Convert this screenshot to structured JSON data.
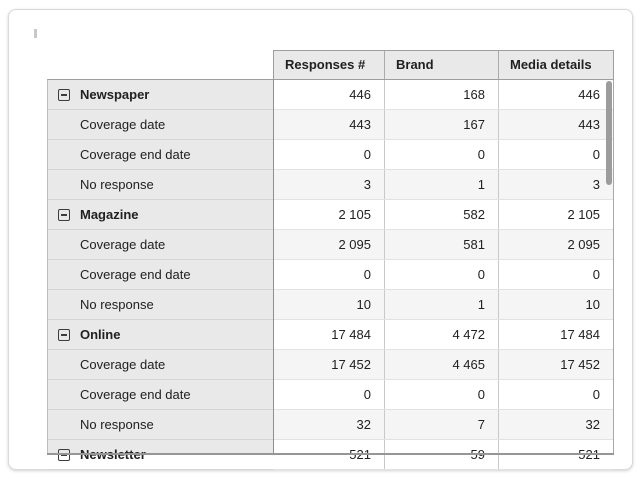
{
  "table": {
    "columns": [
      "Responses #",
      "Brand",
      "Media details"
    ],
    "rows": [
      {
        "label": "Newspaper",
        "group": true,
        "values": [
          "446",
          "168",
          "446"
        ]
      },
      {
        "label": "Coverage date",
        "group": false,
        "values": [
          "443",
          "167",
          "443"
        ]
      },
      {
        "label": "Coverage end date",
        "group": false,
        "values": [
          "0",
          "0",
          "0"
        ]
      },
      {
        "label": "No response",
        "group": false,
        "values": [
          "3",
          "1",
          "3"
        ]
      },
      {
        "label": "Magazine",
        "group": true,
        "values": [
          "2 105",
          "582",
          "2 105"
        ]
      },
      {
        "label": "Coverage date",
        "group": false,
        "values": [
          "2 095",
          "581",
          "2 095"
        ]
      },
      {
        "label": "Coverage end date",
        "group": false,
        "values": [
          "0",
          "0",
          "0"
        ]
      },
      {
        "label": "No response",
        "group": false,
        "values": [
          "10",
          "1",
          "10"
        ]
      },
      {
        "label": "Online",
        "group": true,
        "values": [
          "17 484",
          "4 472",
          "17 484"
        ]
      },
      {
        "label": "Coverage date",
        "group": false,
        "values": [
          "17 452",
          "4 465",
          "17 452"
        ]
      },
      {
        "label": "Coverage end date",
        "group": false,
        "values": [
          "0",
          "0",
          "0"
        ]
      },
      {
        "label": "No response",
        "group": false,
        "values": [
          "32",
          "7",
          "32"
        ]
      },
      {
        "label": "Newsletter",
        "group": true,
        "values": [
          "521",
          "59",
          "521"
        ]
      }
    ],
    "scrollbar": {
      "visible": true
    },
    "collapse_icon": "minus-square"
  },
  "colors": {
    "header_bg": "#e9e9e9",
    "row_header_bg": "#e9e9e9",
    "stripe_bg": "#f5f5f5",
    "grid_line": "#c9c9c9",
    "outer_line": "#9e9e9e",
    "text": "#212121",
    "scroll_thumb": "#9c9c9c"
  }
}
